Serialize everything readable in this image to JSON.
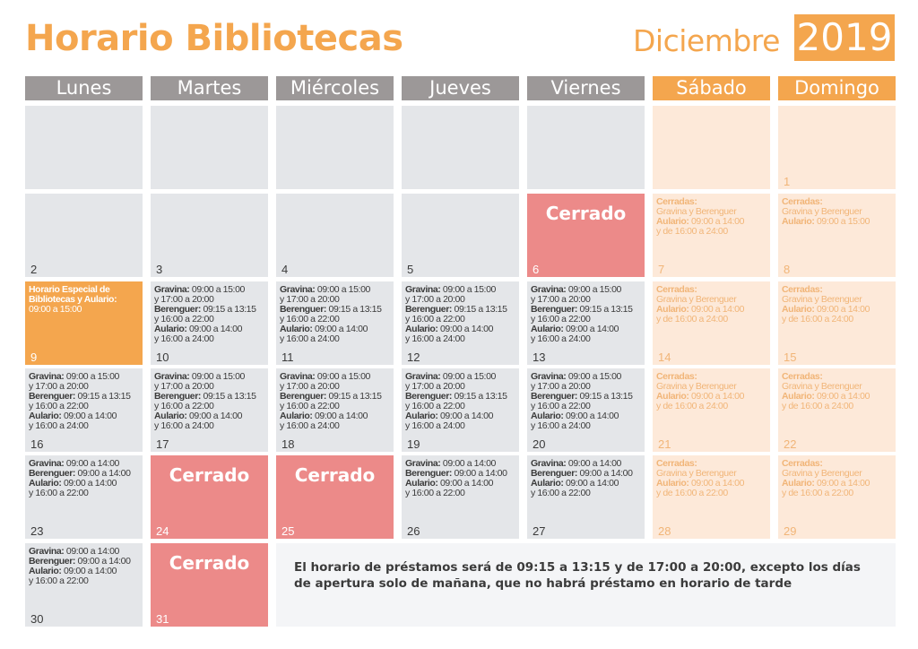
{
  "header": {
    "title": "Horario Bibliotecas",
    "month": "Diciembre",
    "year": "2019"
  },
  "colors": {
    "accent": "#f4a64e",
    "weekday_header": "#9c9898",
    "weekday_cell": "#e4e6e9",
    "weekend_cell": "#fde9d9",
    "closed": "#ec8a89"
  },
  "weekdays": [
    "Lunes",
    "Martes",
    "Miércoles",
    "Jueves",
    "Viernes",
    "Sábado",
    "Domingo"
  ],
  "closed_label": "Cerrado",
  "note": "El horario de préstamos será de 09:15 a 13:15 y de 17:00 a 20:00, excepto los días de apertura solo de mañana, que no habrá préstamo en horario de tarde",
  "templates": {
    "std": [
      {
        "b": "Gravina:",
        "t": " 09:00 a 15:00"
      },
      {
        "t": "y 17:00 a 20:00"
      },
      {
        "b": "Berenguer:",
        "t": " 09:15 a 13:15"
      },
      {
        "t": "y 16:00 a 22:00"
      },
      {
        "b": "Aulario:",
        "t": " 09:00 a 14:00"
      },
      {
        "t": "y 16:00 a 24:00"
      }
    ],
    "short": [
      {
        "b": "Gravina:",
        "t": " 09:00 a 14:00"
      },
      {
        "b": "Berenguer:",
        "t": " 09:00 a 14:00"
      },
      {
        "b": "Aulario:",
        "t": " 09:00 a 14:00"
      },
      {
        "t": "y 16:00 a 22:00"
      }
    ],
    "we24": [
      {
        "b": "Cerradas:"
      },
      {
        "t": "Gravina y Berenguer"
      },
      {
        "b": "Aulario:",
        "t": " 09:00 a 14:00"
      },
      {
        "t": "y de 16:00 a 24:00"
      }
    ],
    "we22": [
      {
        "b": "Cerradas:"
      },
      {
        "t": "Gravina y Berenguer"
      },
      {
        "b": "Aulario:",
        "t": " 09:00 a 14:00"
      },
      {
        "t": "y de 16:00 a 22:00"
      }
    ],
    "we8": [
      {
        "b": "Cerradas:"
      },
      {
        "t": "Gravina y Berenguer"
      },
      {
        "b": "Aulario:",
        "t": " 09:00 a 15:00"
      }
    ],
    "special": [
      {
        "b": "Horario Especial de"
      },
      {
        "b": "Bibliotecas y Aulario:"
      },
      {
        "t": "09:00 a 15:00"
      }
    ]
  },
  "weeks": [
    [
      {
        "type": "wd"
      },
      {
        "type": "wd"
      },
      {
        "type": "wd"
      },
      {
        "type": "wd"
      },
      {
        "type": "wd"
      },
      {
        "type": "we"
      },
      {
        "type": "we",
        "day": "1"
      }
    ],
    [
      {
        "type": "wd",
        "day": "2"
      },
      {
        "type": "wd",
        "day": "3"
      },
      {
        "type": "wd",
        "day": "4"
      },
      {
        "type": "wd",
        "day": "5"
      },
      {
        "type": "closed",
        "day": "6"
      },
      {
        "type": "we",
        "day": "7",
        "tpl": "we24"
      },
      {
        "type": "we",
        "day": "8",
        "tpl": "we8"
      }
    ],
    [
      {
        "type": "special",
        "day": "9",
        "tpl": "special"
      },
      {
        "type": "wd",
        "day": "10",
        "tpl": "std"
      },
      {
        "type": "wd",
        "day": "11",
        "tpl": "std"
      },
      {
        "type": "wd",
        "day": "12",
        "tpl": "std"
      },
      {
        "type": "wd",
        "day": "13",
        "tpl": "std"
      },
      {
        "type": "we",
        "day": "14",
        "tpl": "we24"
      },
      {
        "type": "we",
        "day": "15",
        "tpl": "we24"
      }
    ],
    [
      {
        "type": "wd",
        "day": "16",
        "tpl": "std"
      },
      {
        "type": "wd",
        "day": "17",
        "tpl": "std"
      },
      {
        "type": "wd",
        "day": "18",
        "tpl": "std"
      },
      {
        "type": "wd",
        "day": "19",
        "tpl": "std"
      },
      {
        "type": "wd",
        "day": "20",
        "tpl": "std"
      },
      {
        "type": "we",
        "day": "21",
        "tpl": "we24"
      },
      {
        "type": "we",
        "day": "22",
        "tpl": "we24"
      }
    ],
    [
      {
        "type": "wd",
        "day": "23",
        "tpl": "short"
      },
      {
        "type": "closed",
        "day": "24"
      },
      {
        "type": "closed",
        "day": "25"
      },
      {
        "type": "wd",
        "day": "26",
        "tpl": "short"
      },
      {
        "type": "wd",
        "day": "27",
        "tpl": "short"
      },
      {
        "type": "we",
        "day": "28",
        "tpl": "we22"
      },
      {
        "type": "we",
        "day": "29",
        "tpl": "we22"
      }
    ],
    [
      {
        "type": "wd",
        "day": "30",
        "tpl": "short"
      },
      {
        "type": "closed",
        "day": "31"
      }
    ]
  ]
}
